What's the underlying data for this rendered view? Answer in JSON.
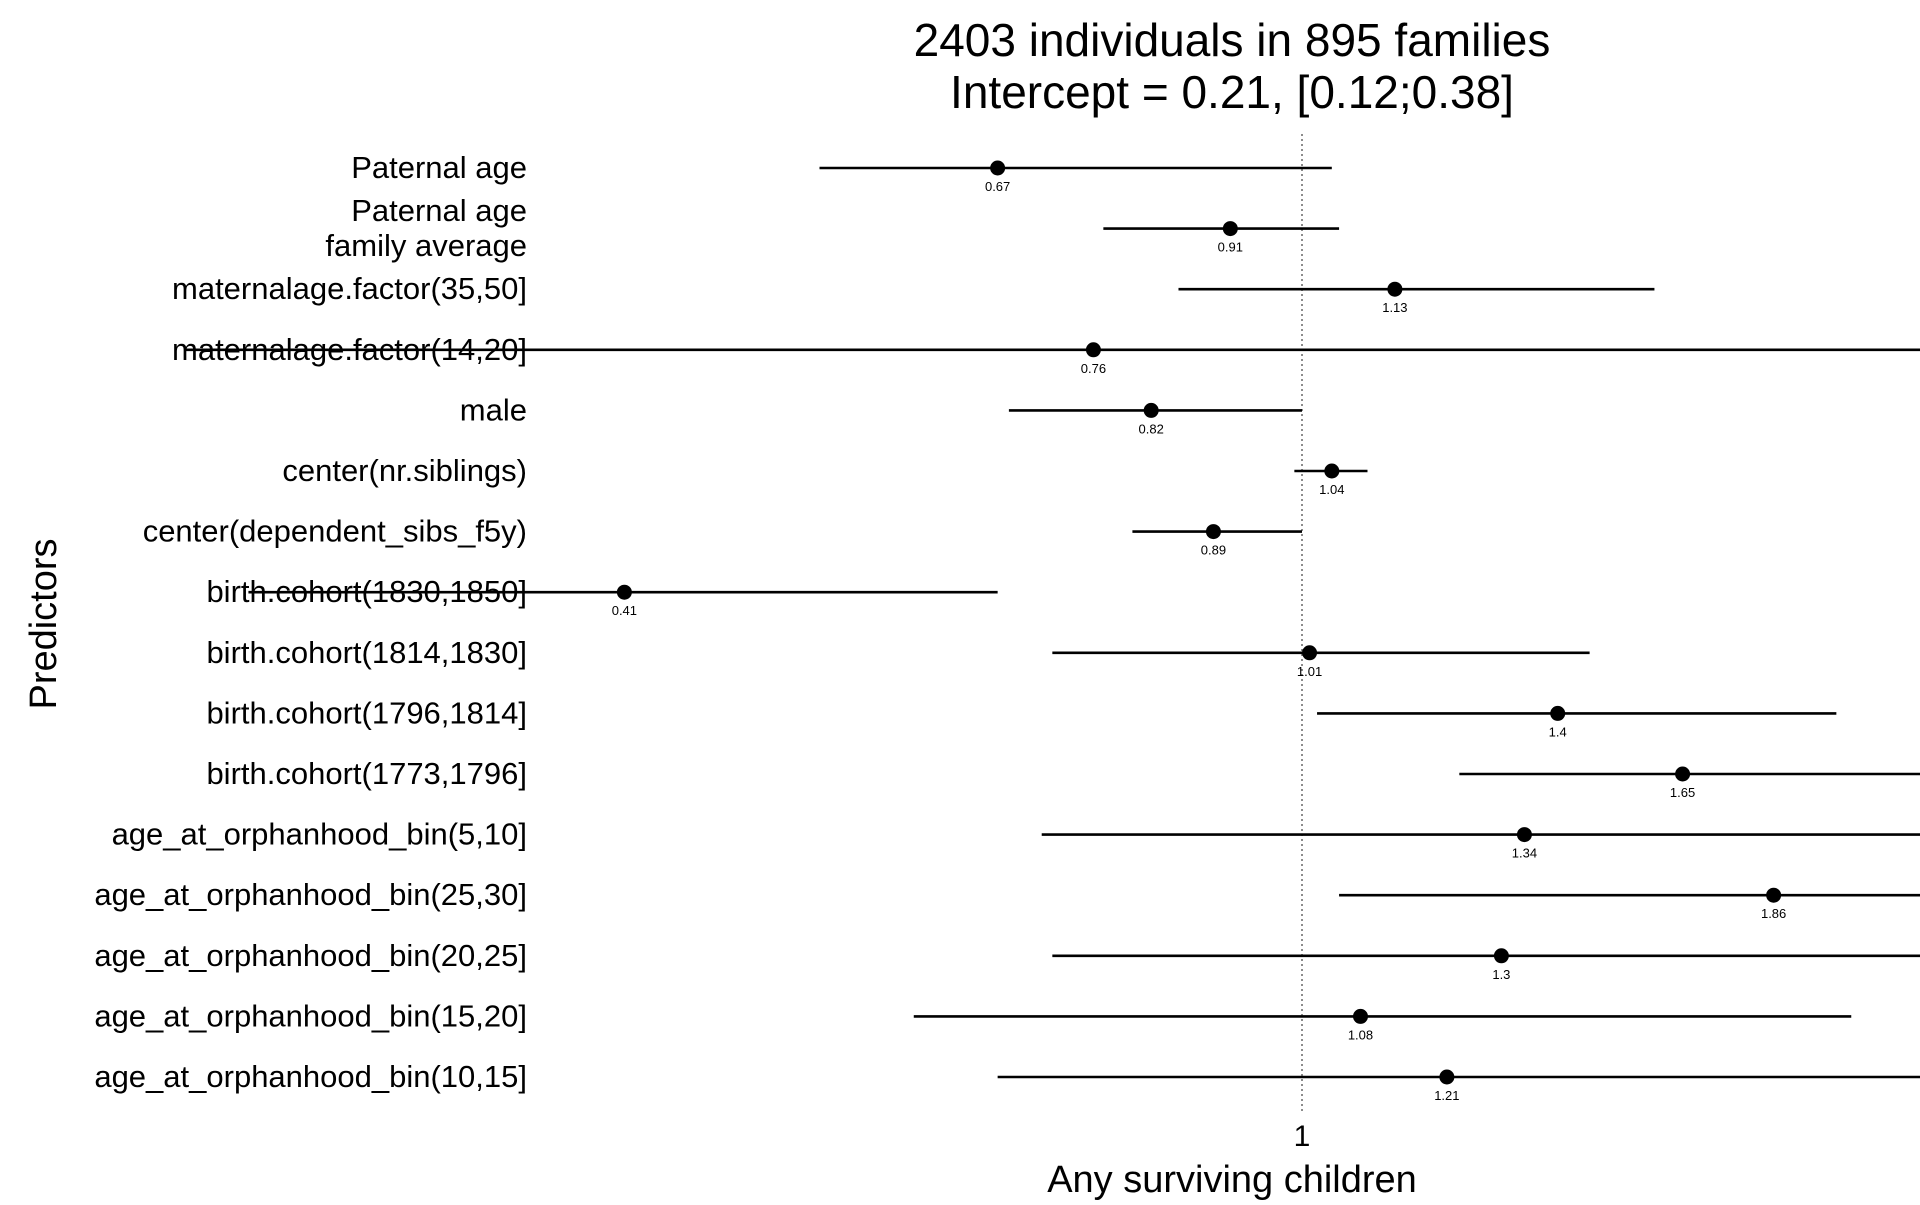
{
  "chart_data": {
    "type": "forest",
    "title_lines": [
      "2403 individuals in 895 families",
      "Intercept = 0.21, [0.12;0.38]"
    ],
    "xlabel": "Any surviving children",
    "ylabel": "Predictors",
    "x_ticks": [
      1
    ],
    "x_tick_labels": [
      "1"
    ],
    "x_scale": "log",
    "reference_line": 1,
    "grid": false,
    "rows": [
      {
        "label_lines": [
          "Paternal age"
        ],
        "estimate": 0.67,
        "value_label": "0.67",
        "ci": [
          0.53,
          1.04
        ]
      },
      {
        "label_lines": [
          "Paternal age",
          "family average"
        ],
        "estimate": 0.91,
        "value_label": "0.91",
        "ci": [
          0.77,
          1.05
        ]
      },
      {
        "label_lines": [
          "maternalage.factor(35,50]"
        ],
        "estimate": 1.13,
        "value_label": "1.13",
        "ci": [
          0.85,
          1.59
        ]
      },
      {
        "label_lines": [
          "maternalage.factor(14,20]"
        ],
        "estimate": 0.76,
        "value_label": "0.76",
        "ci": [
          0.23,
          2.68
        ]
      },
      {
        "label_lines": [
          "male"
        ],
        "estimate": 0.82,
        "value_label": "0.82",
        "ci": [
          0.68,
          1.0
        ]
      },
      {
        "label_lines": [
          "center(nr.siblings)"
        ],
        "estimate": 1.04,
        "value_label": "1.04",
        "ci": [
          0.99,
          1.09
        ]
      },
      {
        "label_lines": [
          "center(dependent_sibs_f5y)"
        ],
        "estimate": 0.89,
        "value_label": "0.89",
        "ci": [
          0.8,
          1.0
        ]
      },
      {
        "label_lines": [
          "birth.cohort(1830,1850]"
        ],
        "estimate": 0.41,
        "value_label": "0.41",
        "ci": [
          0.25,
          0.67
        ]
      },
      {
        "label_lines": [
          "birth.cohort(1814,1830]"
        ],
        "estimate": 1.01,
        "value_label": "1.01",
        "ci": [
          0.72,
          1.46
        ]
      },
      {
        "label_lines": [
          "birth.cohort(1796,1814]"
        ],
        "estimate": 1.4,
        "value_label": "1.4",
        "ci": [
          1.02,
          2.02
        ]
      },
      {
        "label_lines": [
          "birth.cohort(1773,1796]"
        ],
        "estimate": 1.65,
        "value_label": "1.65",
        "ci": [
          1.23,
          2.38
        ]
      },
      {
        "label_lines": [
          "age_at_orphanhood_bin(5,10]"
        ],
        "estimate": 1.34,
        "value_label": "1.34",
        "ci": [
          0.71,
          2.7
        ]
      },
      {
        "label_lines": [
          "age_at_orphanhood_bin(25,30]"
        ],
        "estimate": 1.86,
        "value_label": "1.86",
        "ci": [
          1.05,
          3.5
        ]
      },
      {
        "label_lines": [
          "age_at_orphanhood_bin(20,25]"
        ],
        "estimate": 1.3,
        "value_label": "1.3",
        "ci": [
          0.72,
          2.47
        ]
      },
      {
        "label_lines": [
          "age_at_orphanhood_bin(15,20]"
        ],
        "estimate": 1.08,
        "value_label": "1.08",
        "ci": [
          0.6,
          2.06
        ]
      },
      {
        "label_lines": [
          "age_at_orphanhood_bin(10,15]"
        ],
        "estimate": 1.21,
        "value_label": "1.21",
        "ci": [
          0.67,
          2.44
        ]
      }
    ]
  }
}
